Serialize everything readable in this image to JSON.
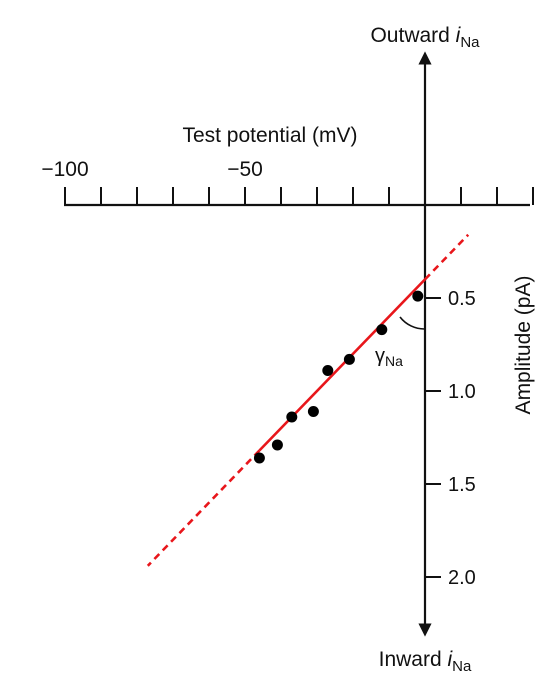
{
  "chart_data": {
    "type": "scatter",
    "top_label": {
      "main": "Outward ",
      "italic": "i",
      "sub": "Na"
    },
    "bottom_label": {
      "main": "Inward ",
      "italic": "i",
      "sub": "Na"
    },
    "xlabel": "Test potential (mV)",
    "ylabel": "Amplitude (pA)",
    "x_tick_labels": [
      {
        "x": -100,
        "label": "−100"
      },
      {
        "x": -50,
        "label": "−50"
      }
    ],
    "x_minor_ticks": [
      -100,
      -90,
      -80,
      -70,
      -60,
      -50,
      -40,
      -30,
      -20,
      -10,
      10,
      20,
      30
    ],
    "xlim": [
      -100,
      30
    ],
    "y_tick_labels": [
      {
        "y": 0.5,
        "label": "0.5"
      },
      {
        "y": 1.0,
        "label": "1.0"
      },
      {
        "y": 1.5,
        "label": "1.5"
      },
      {
        "y": 2.0,
        "label": "2.0"
      }
    ],
    "ylim": [
      0,
      2.2
    ],
    "y_direction": "amplitude increases downward",
    "points": [
      {
        "x": -2,
        "y": 0.49
      },
      {
        "x": -12,
        "y": 0.67
      },
      {
        "x": -21,
        "y": 0.83
      },
      {
        "x": -27,
        "y": 0.89
      },
      {
        "x": -31,
        "y": 1.11
      },
      {
        "x": -37,
        "y": 1.14
      },
      {
        "x": -41,
        "y": 1.29
      },
      {
        "x": -46,
        "y": 1.36
      }
    ],
    "fit_line": {
      "solid": {
        "from": {
          "x": 0,
          "y": 0.4
        },
        "to": {
          "x": -46,
          "y": 1.32
        }
      },
      "dashed": [
        {
          "from": {
            "x": 0,
            "y": 0.4
          },
          "to": {
            "x": 12,
            "y": 0.16
          }
        },
        {
          "from": {
            "x": -46,
            "y": 1.32
          },
          "to": {
            "x": -77,
            "y": 1.94
          }
        }
      ],
      "color": "#e8161b"
    },
    "angle_label": {
      "main": "γ",
      "sub": "Na"
    },
    "colors": {
      "axis": "#111111",
      "points": "#000000",
      "fit": "#e8161b"
    }
  }
}
